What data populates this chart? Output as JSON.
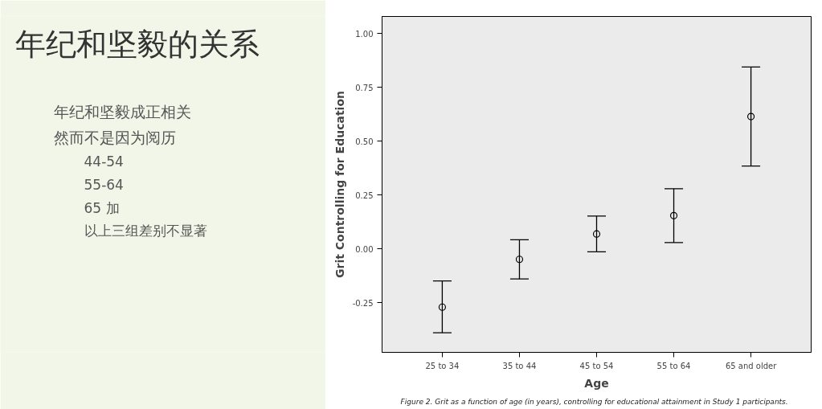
{
  "chart_data": {
    "type": "scatter",
    "title": "年纪和坚毅的关系",
    "annotations": [
      "年纪和坚毅成正相关",
      "然而不是因为阅历",
      "44-54",
      "55-64",
      "65 加",
      "以上三组差别不显著",
      "Figure 2.   Grit as a function of age (in years), controlling for educational attainment in Study 1 participants."
    ],
    "xlabel": "Age",
    "ylabel": "Grit Controlling for Education",
    "categories": [
      "25 to 34",
      "35 to 44",
      "45 to 54",
      "55 to 64",
      "65 and older"
    ],
    "series": [
      {
        "color": "#000000",
        "values": [
          -0.27,
          -0.048,
          0.07,
          0.155,
          0.615
        ],
        "errors": [
          [
            -0.389,
            -0.148
          ],
          [
            -0.139,
            0.043
          ],
          [
            -0.013,
            0.153
          ],
          [
            0.03,
            0.28
          ],
          [
            0.385,
            0.845
          ]
        ]
      }
    ],
    "ylim": [
      -0.48,
      1.08
    ],
    "yticks": [
      {
        "value": -0.25,
        "label": "-0.25"
      },
      {
        "value": 0,
        "label": "0.00"
      },
      {
        "value": 0.25,
        "label": "0.25"
      },
      {
        "value": 0.5,
        "label": "0.50"
      },
      {
        "value": 0.75,
        "label": "0.75"
      },
      {
        "value": 1,
        "label": "1.00"
      }
    ],
    "grid": false,
    "marker": "circle"
  }
}
